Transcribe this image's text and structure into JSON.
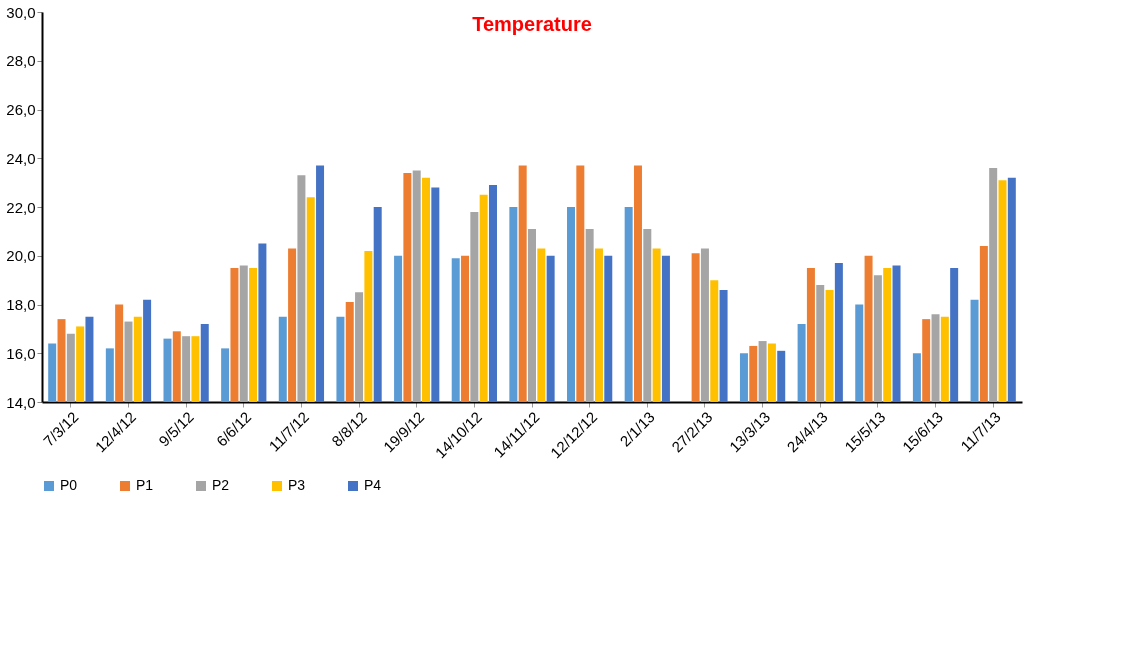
{
  "chart_data": {
    "type": "bar",
    "title": "Temperature",
    "categories": [
      "7/3/12",
      "12/4/12",
      "9/5/12",
      "6/6/12",
      "11/7/12",
      "8/8/12",
      "19/9/12",
      "14/10/12",
      "14/11/12",
      "12/12/12",
      "2/1/13",
      "27/2/13",
      "13/3/13",
      "24/4/13",
      "15/5/13",
      "15/6/13",
      "11/7/13"
    ],
    "series": [
      {
        "name": "P0",
        "color": "#5b9bd5",
        "values": [
          16.4,
          16.2,
          16.6,
          16.2,
          17.5,
          17.5,
          20.0,
          19.9,
          22.0,
          22.0,
          22.0,
          null,
          16.0,
          17.2,
          18.0,
          16.0,
          18.2
        ]
      },
      {
        "name": "P1",
        "color": "#ed7d31",
        "values": [
          17.4,
          18.0,
          16.9,
          19.5,
          20.3,
          18.1,
          23.4,
          20.0,
          23.7,
          23.7,
          23.7,
          20.1,
          16.3,
          19.5,
          20.0,
          17.4,
          20.4
        ]
      },
      {
        "name": "P2",
        "color": "#a5a5a5",
        "values": [
          16.8,
          17.3,
          16.7,
          19.6,
          23.3,
          18.5,
          23.5,
          21.8,
          21.1,
          21.1,
          21.1,
          20.3,
          16.5,
          18.8,
          19.2,
          17.6,
          23.6
        ]
      },
      {
        "name": "P3",
        "color": "#ffc000",
        "values": [
          17.1,
          17.5,
          16.7,
          19.5,
          22.4,
          20.2,
          23.2,
          22.5,
          20.3,
          20.3,
          20.3,
          19.0,
          16.4,
          18.6,
          19.5,
          17.5,
          23.1
        ]
      },
      {
        "name": "P4",
        "color": "#4472c4",
        "values": [
          17.5,
          18.2,
          17.2,
          20.5,
          23.7,
          22.0,
          22.8,
          22.9,
          20.0,
          20.0,
          20.0,
          18.6,
          16.1,
          19.7,
          19.6,
          19.5,
          23.2
        ]
      }
    ],
    "ylim": [
      14,
      30
    ],
    "yticks": [
      {
        "value": 14,
        "label": "14,0"
      },
      {
        "value": 16,
        "label": "16,0"
      },
      {
        "value": 18,
        "label": "18,0"
      },
      {
        "value": 20,
        "label": "20,0"
      },
      {
        "value": 22,
        "label": "22,0"
      },
      {
        "value": 24,
        "label": "24,0"
      },
      {
        "value": 26,
        "label": "26,0"
      },
      {
        "value": 28,
        "label": "28,0"
      },
      {
        "value": 30,
        "label": "30,0"
      }
    ],
    "grid": false,
    "legend": "bottom"
  }
}
